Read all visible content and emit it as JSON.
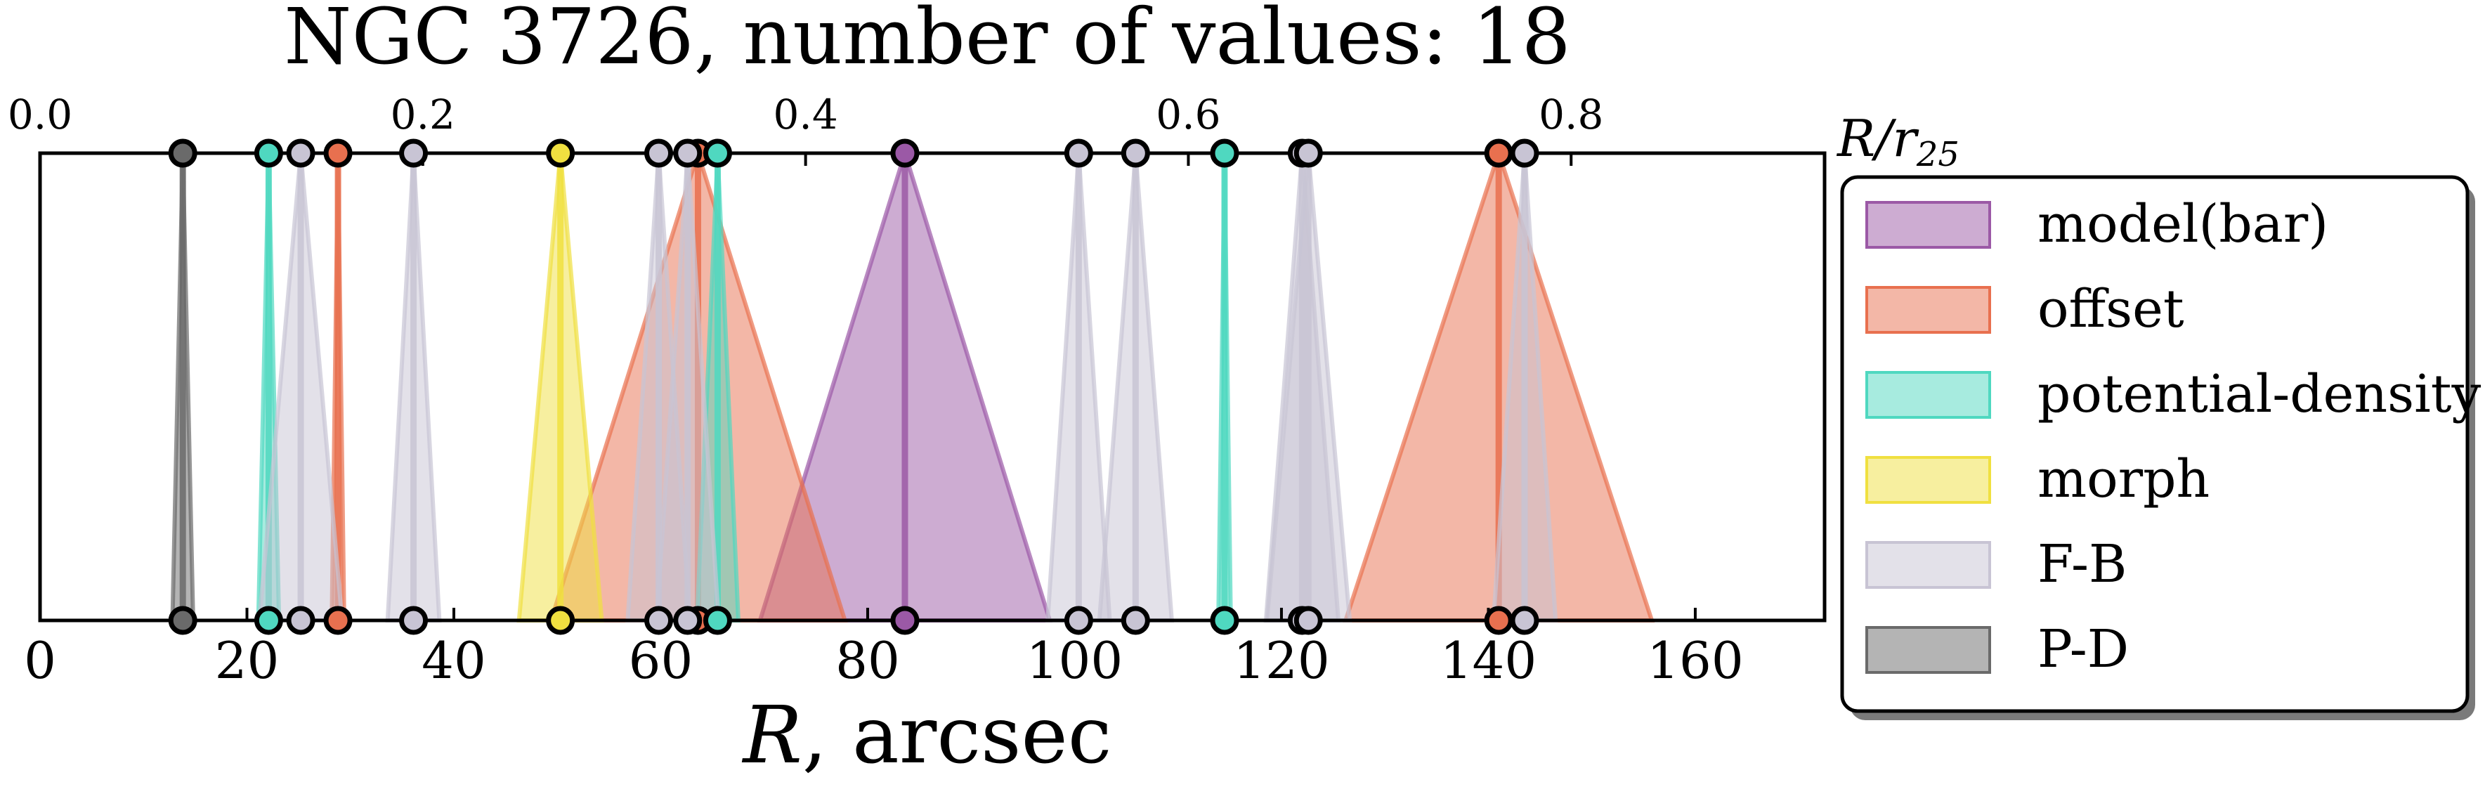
{
  "chart_data": {
    "type": "area",
    "title": "NGC 3726, number of values: 18",
    "xlabel": "R, arcsec",
    "x2label": "R/r25",
    "xlim": [
      0,
      172.5
    ],
    "ylim": [
      0,
      1
    ],
    "xticks": [
      0,
      20,
      40,
      60,
      80,
      100,
      120,
      140,
      160
    ],
    "top_axis": {
      "ticks": [
        0.0,
        0.2,
        0.4,
        0.6,
        0.8
      ],
      "tick_labels": [
        "0.0",
        "0.2",
        "0.4",
        "0.6",
        "0.8"
      ],
      "scale": "R/r25 = R / 185"
    },
    "legend_position": "outside-right",
    "series": [
      {
        "name": "model(bar)",
        "color": "#9b59a6",
        "values": [
          {
            "x": 83.6,
            "half_width": 14.0
          }
        ]
      },
      {
        "name": "offset",
        "color": "#e8704f",
        "values": [
          {
            "x": 28.8,
            "half_width": 0.6
          },
          {
            "x": 63.6,
            "half_width": 14.2
          },
          {
            "x": 141.0,
            "half_width": 14.8
          }
        ]
      },
      {
        "name": "potential-density",
        "color": "#4fd8c0",
        "values": [
          {
            "x": 22.1,
            "half_width": 1.0
          },
          {
            "x": 65.5,
            "half_width": 2.0
          },
          {
            "x": 114.5,
            "half_width": 0.6
          }
        ]
      },
      {
        "name": "morph",
        "color": "#f0e040",
        "values": [
          {
            "x": 50.3,
            "half_width": 4.0
          }
        ]
      },
      {
        "name": "F-B",
        "color": "#c8c4d4",
        "values": [
          {
            "x": 25.2,
            "half_width": 4.0
          },
          {
            "x": 36.1,
            "half_width": 2.5
          },
          {
            "x": 59.8,
            "half_width": 3.0
          },
          {
            "x": 62.6,
            "half_width": 3.0
          },
          {
            "x": 100.4,
            "half_width": 3.0
          },
          {
            "x": 105.9,
            "half_width": 3.5
          },
          {
            "x": 122.0,
            "half_width": 3.5
          },
          {
            "x": 122.6,
            "half_width": 4.0
          },
          {
            "x": 143.5,
            "half_width": 3.0
          }
        ]
      },
      {
        "name": "P-D",
        "color": "#6a6a6a",
        "values": [
          {
            "x": 13.8,
            "half_width": 1.0
          }
        ]
      }
    ]
  }
}
